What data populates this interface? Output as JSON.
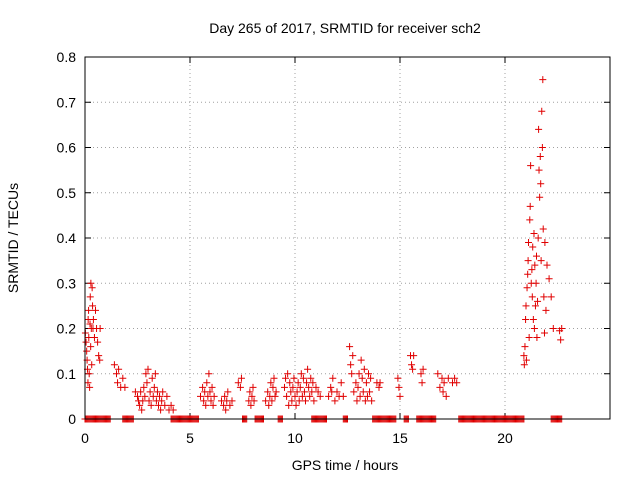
{
  "chart_data": {
    "type": "scatter",
    "title": "Day 265 of 2017, SRMTID for receiver sch2",
    "xlabel": "GPS time / hours",
    "ylabel": "SRMTID / TECUs",
    "xlim": [
      0,
      25
    ],
    "ylim": [
      0,
      0.8
    ],
    "xticks": [
      0,
      5,
      10,
      15,
      20
    ],
    "yticks": [
      0,
      0.1,
      0.2,
      0.3,
      0.4,
      0.5,
      0.6,
      0.7,
      0.8
    ],
    "xtick_labels": [
      "0",
      "5",
      "10",
      "15",
      "20"
    ],
    "ytick_labels": [
      "0",
      "0.1",
      "0.2",
      "0.3",
      "0.4",
      "0.5",
      "0.6",
      "0.7",
      "0.8"
    ],
    "grid": true,
    "marker": "+",
    "color": "#e00000",
    "series": [
      {
        "name": "SRMTID",
        "points": [
          [
            0.02,
            0.19
          ],
          [
            0.05,
            0.17
          ],
          [
            0.08,
            0.15
          ],
          [
            0.1,
            0.13
          ],
          [
            0.12,
            0.11
          ],
          [
            0.14,
            0.08
          ],
          [
            0.15,
            0.22
          ],
          [
            0.17,
            0.24
          ],
          [
            0.18,
            0.18
          ],
          [
            0.2,
            0.1
          ],
          [
            0.22,
            0.07
          ],
          [
            0.24,
            0.21
          ],
          [
            0.25,
            0.27
          ],
          [
            0.27,
            0.16
          ],
          [
            0.28,
            0.3
          ],
          [
            0.3,
            0.2
          ],
          [
            0.32,
            0.12
          ],
          [
            0.34,
            0.29
          ],
          [
            0.36,
            0.25
          ],
          [
            0.38,
            0.2
          ],
          [
            0.4,
            0.22
          ],
          [
            0.45,
            0.18
          ],
          [
            0.5,
            0.24
          ],
          [
            0.55,
            0.2
          ],
          [
            0.6,
            0.17
          ],
          [
            0.65,
            0.14
          ],
          [
            0.7,
            0.13
          ],
          [
            0.72,
            0.2
          ],
          [
            1.4,
            0.12
          ],
          [
            1.5,
            0.1
          ],
          [
            1.55,
            0.08
          ],
          [
            1.6,
            0.11
          ],
          [
            1.7,
            0.07
          ],
          [
            1.8,
            0.09
          ],
          [
            1.9,
            0.07
          ],
          [
            2.4,
            0.06
          ],
          [
            2.5,
            0.05
          ],
          [
            2.55,
            0.04
          ],
          [
            2.6,
            0.03
          ],
          [
            2.65,
            0.06
          ],
          [
            2.7,
            0.02
          ],
          [
            2.75,
            0.04
          ],
          [
            2.8,
            0.07
          ],
          [
            2.85,
            0.05
          ],
          [
            2.9,
            0.1
          ],
          [
            2.95,
            0.08
          ],
          [
            3.0,
            0.11
          ],
          [
            3.05,
            0.04
          ],
          [
            3.1,
            0.06
          ],
          [
            3.15,
            0.03
          ],
          [
            3.2,
            0.09
          ],
          [
            3.25,
            0.05
          ],
          [
            3.3,
            0.07
          ],
          [
            3.35,
            0.1
          ],
          [
            3.4,
            0.04
          ],
          [
            3.45,
            0.06
          ],
          [
            3.5,
            0.03
          ],
          [
            3.55,
            0.05
          ],
          [
            3.6,
            0.02
          ],
          [
            3.65,
            0.04
          ],
          [
            3.7,
            0.06
          ],
          [
            3.8,
            0.03
          ],
          [
            3.9,
            0.05
          ],
          [
            4.0,
            0.02
          ],
          [
            4.1,
            0.03
          ],
          [
            4.2,
            0.02
          ],
          [
            5.5,
            0.05
          ],
          [
            5.6,
            0.07
          ],
          [
            5.65,
            0.04
          ],
          [
            5.7,
            0.06
          ],
          [
            5.75,
            0.03
          ],
          [
            5.8,
            0.08
          ],
          [
            5.85,
            0.05
          ],
          [
            5.9,
            0.1
          ],
          [
            5.95,
            0.06
          ],
          [
            6.0,
            0.04
          ],
          [
            6.05,
            0.07
          ],
          [
            6.1,
            0.03
          ],
          [
            6.15,
            0.05
          ],
          [
            6.5,
            0.04
          ],
          [
            6.6,
            0.03
          ],
          [
            6.65,
            0.05
          ],
          [
            6.7,
            0.02
          ],
          [
            6.75,
            0.04
          ],
          [
            6.8,
            0.06
          ],
          [
            6.9,
            0.03
          ],
          [
            7.0,
            0.04
          ],
          [
            7.3,
            0.08
          ],
          [
            7.4,
            0.07
          ],
          [
            7.45,
            0.09
          ],
          [
            7.8,
            0.04
          ],
          [
            7.85,
            0.06
          ],
          [
            7.9,
            0.03
          ],
          [
            7.95,
            0.05
          ],
          [
            8.0,
            0.07
          ],
          [
            8.05,
            0.04
          ],
          [
            8.6,
            0.04
          ],
          [
            8.7,
            0.06
          ],
          [
            8.75,
            0.03
          ],
          [
            8.8,
            0.05
          ],
          [
            8.85,
            0.08
          ],
          [
            8.9,
            0.04
          ],
          [
            8.95,
            0.07
          ],
          [
            9.0,
            0.09
          ],
          [
            9.05,
            0.05
          ],
          [
            9.1,
            0.06
          ],
          [
            9.5,
            0.07
          ],
          [
            9.55,
            0.09
          ],
          [
            9.6,
            0.05
          ],
          [
            9.65,
            0.1
          ],
          [
            9.7,
            0.03
          ],
          [
            9.75,
            0.08
          ],
          [
            9.8,
            0.06
          ],
          [
            9.85,
            0.04
          ],
          [
            9.9,
            0.07
          ],
          [
            9.95,
            0.09
          ],
          [
            10.0,
            0.05
          ],
          [
            10.05,
            0.03
          ],
          [
            10.1,
            0.06
          ],
          [
            10.15,
            0.08
          ],
          [
            10.2,
            0.04
          ],
          [
            10.25,
            0.07
          ],
          [
            10.3,
            0.1
          ],
          [
            10.35,
            0.05
          ],
          [
            10.4,
            0.09
          ],
          [
            10.45,
            0.06
          ],
          [
            10.5,
            0.04
          ],
          [
            10.55,
            0.08
          ],
          [
            10.6,
            0.11
          ],
          [
            10.65,
            0.07
          ],
          [
            10.7,
            0.05
          ],
          [
            10.75,
            0.09
          ],
          [
            10.8,
            0.06
          ],
          [
            10.85,
            0.08
          ],
          [
            10.9,
            0.04
          ],
          [
            11.0,
            0.07
          ],
          [
            11.1,
            0.06
          ],
          [
            11.2,
            0.05
          ],
          [
            11.6,
            0.05
          ],
          [
            11.7,
            0.07
          ],
          [
            11.75,
            0.06
          ],
          [
            11.8,
            0.09
          ],
          [
            11.9,
            0.04
          ],
          [
            12.0,
            0.06
          ],
          [
            12.1,
            0.05
          ],
          [
            12.2,
            0.08
          ],
          [
            12.3,
            0.05
          ],
          [
            12.6,
            0.16
          ],
          [
            12.65,
            0.12
          ],
          [
            12.7,
            0.1
          ],
          [
            12.75,
            0.14
          ],
          [
            12.8,
            0.06
          ],
          [
            12.9,
            0.08
          ],
          [
            12.95,
            0.04
          ],
          [
            13.0,
            0.07
          ],
          [
            13.05,
            0.1
          ],
          [
            13.1,
            0.05
          ],
          [
            13.15,
            0.13
          ],
          [
            13.2,
            0.09
          ],
          [
            13.25,
            0.06
          ],
          [
            13.3,
            0.11
          ],
          [
            13.35,
            0.04
          ],
          [
            13.4,
            0.08
          ],
          [
            13.45,
            0.05
          ],
          [
            13.5,
            0.1
          ],
          [
            13.55,
            0.06
          ],
          [
            13.6,
            0.09
          ],
          [
            13.65,
            0.04
          ],
          [
            13.9,
            0.08
          ],
          [
            14.0,
            0.07
          ],
          [
            14.05,
            0.08
          ],
          [
            14.9,
            0.09
          ],
          [
            14.95,
            0.07
          ],
          [
            15.0,
            0.05
          ],
          [
            15.5,
            0.14
          ],
          [
            15.55,
            0.12
          ],
          [
            15.6,
            0.11
          ],
          [
            15.65,
            0.14
          ],
          [
            16.0,
            0.1
          ],
          [
            16.05,
            0.08
          ],
          [
            16.1,
            0.11
          ],
          [
            16.8,
            0.1
          ],
          [
            16.9,
            0.07
          ],
          [
            17.0,
            0.09
          ],
          [
            17.05,
            0.06
          ],
          [
            17.1,
            0.08
          ],
          [
            17.2,
            0.05
          ],
          [
            17.3,
            0.09
          ],
          [
            17.5,
            0.08
          ],
          [
            17.6,
            0.09
          ],
          [
            17.7,
            0.08
          ],
          [
            20.9,
            0.14
          ],
          [
            20.92,
            0.12
          ],
          [
            20.95,
            0.16
          ],
          [
            20.98,
            0.22
          ],
          [
            21.0,
            0.25
          ],
          [
            21.02,
            0.13
          ],
          [
            21.05,
            0.29
          ],
          [
            21.08,
            0.32
          ],
          [
            21.1,
            0.35
          ],
          [
            21.12,
            0.39
          ],
          [
            21.15,
            0.18
          ],
          [
            21.18,
            0.44
          ],
          [
            21.2,
            0.47
          ],
          [
            21.22,
            0.56
          ],
          [
            21.25,
            0.3
          ],
          [
            21.28,
            0.33
          ],
          [
            21.3,
            0.27
          ],
          [
            21.32,
            0.38
          ],
          [
            21.35,
            0.22
          ],
          [
            21.38,
            0.41
          ],
          [
            21.4,
            0.2
          ],
          [
            21.42,
            0.34
          ],
          [
            21.45,
            0.25
          ],
          [
            21.48,
            0.3
          ],
          [
            21.5,
            0.36
          ],
          [
            21.52,
            0.18
          ],
          [
            21.55,
            0.26
          ],
          [
            21.58,
            0.4
          ],
          [
            21.6,
            0.64
          ],
          [
            21.62,
            0.55
          ],
          [
            21.65,
            0.49
          ],
          [
            21.68,
            0.58
          ],
          [
            21.7,
            0.52
          ],
          [
            21.72,
            0.35
          ],
          [
            21.75,
            0.68
          ],
          [
            21.78,
            0.6
          ],
          [
            21.8,
            0.75
          ],
          [
            21.82,
            0.42
          ],
          [
            21.85,
            0.27
          ],
          [
            21.88,
            0.19
          ],
          [
            21.9,
            0.39
          ],
          [
            21.95,
            0.24
          ],
          [
            22.0,
            0.34
          ],
          [
            22.1,
            0.31
          ],
          [
            22.2,
            0.27
          ],
          [
            22.3,
            0.2
          ],
          [
            22.6,
            0.195
          ],
          [
            22.65,
            0.175
          ],
          [
            22.7,
            0.2
          ]
        ],
        "zero_runs": [
          [
            0.0,
            1.2
          ],
          [
            1.8,
            2.3
          ],
          [
            4.1,
            5.4
          ],
          [
            7.5,
            7.7
          ],
          [
            8.1,
            8.5
          ],
          [
            9.2,
            9.4
          ],
          [
            10.8,
            11.5
          ],
          [
            12.3,
            12.5
          ],
          [
            13.7,
            14.8
          ],
          [
            15.2,
            15.4
          ],
          [
            15.8,
            16.7
          ],
          [
            17.8,
            20.9
          ],
          [
            22.2,
            22.7
          ]
        ]
      }
    ]
  }
}
